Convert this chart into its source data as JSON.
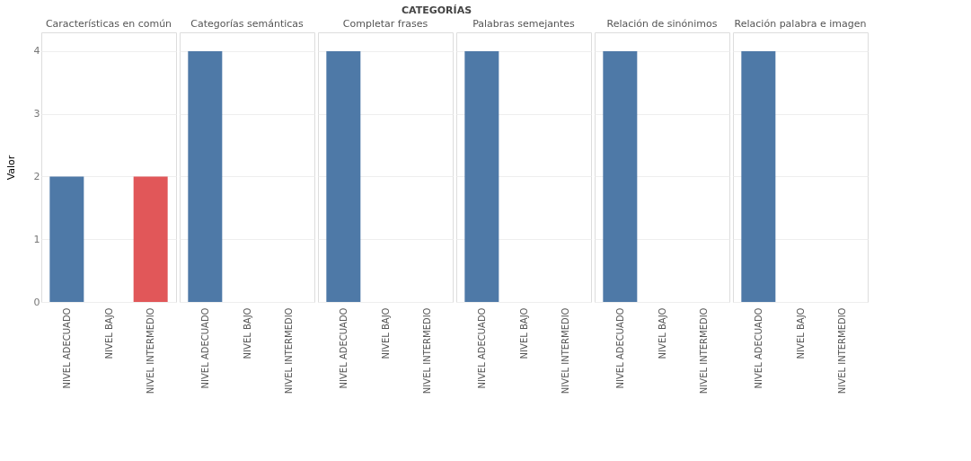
{
  "chart_data": [
    {
      "type": "bar",
      "title": "Características en común",
      "annotations": [
        "CATEGORÍAS"
      ],
      "ylabel": "Valor",
      "categories": [
        "NIVEL ADECUADO",
        "NIVEL BAJO",
        "NIVEL INTERMEDIO"
      ],
      "values": [
        2,
        null,
        2
      ],
      "colors": [
        "#4e79a7",
        "#4e79a7",
        "#e15759"
      ],
      "ylim": [
        0,
        4.3
      ],
      "yticks": [
        0,
        1,
        2,
        3,
        4
      ],
      "grid": "y"
    },
    {
      "type": "bar",
      "title": "Categorías semánticas",
      "categories": [
        "NIVEL ADECUADO",
        "NIVEL BAJO",
        "NIVEL INTERMEDIO"
      ],
      "values": [
        4,
        null,
        null
      ],
      "colors": [
        "#4e79a7",
        "#4e79a7",
        "#4e79a7"
      ],
      "ylim": [
        0,
        4.3
      ],
      "yticks": [
        0,
        1,
        2,
        3,
        4
      ],
      "grid": "y",
      "tick_labels": "x"
    },
    {
      "type": "bar",
      "title": "Completar frases",
      "categories": [
        "NIVEL ADECUADO",
        "NIVEL BAJO",
        "NIVEL INTERMEDIO"
      ],
      "values": [
        4,
        null,
        null
      ],
      "colors": [
        "#4e79a7",
        "#4e79a7",
        "#4e79a7"
      ],
      "ylim": [
        0,
        4.3
      ],
      "yticks": [
        0,
        1,
        2,
        3,
        4
      ],
      "grid": "y",
      "tick_labels": "x"
    },
    {
      "type": "bar",
      "title": "Palabras semejantes",
      "categories": [
        "NIVEL ADECUADO",
        "NIVEL BAJO",
        "NIVEL INTERMEDIO"
      ],
      "values": [
        4,
        null,
        null
      ],
      "colors": [
        "#4e79a7",
        "#4e79a7",
        "#4e79a7"
      ],
      "ylim": [
        0,
        4.3
      ],
      "yticks": [
        0,
        1,
        2,
        3,
        4
      ],
      "grid": "y",
      "tick_labels": "x"
    },
    {
      "type": "bar",
      "title": "Relación de sinónimos",
      "categories": [
        "NIVEL ADECUADO",
        "NIVEL BAJO",
        "NIVEL INTERMEDIO"
      ],
      "values": [
        4,
        null,
        null
      ],
      "colors": [
        "#4e79a7",
        "#4e79a7",
        "#4e79a7"
      ],
      "ylim": [
        0,
        4.3
      ],
      "yticks": [
        0,
        1,
        2,
        3,
        4
      ],
      "grid": "y",
      "tick_labels": "x"
    },
    {
      "type": "bar",
      "title": "Relación palabra e imagen",
      "categories": [
        "NIVEL ADECUADO",
        "NIVEL BAJO",
        "NIVEL INTERMEDIO"
      ],
      "values": [
        4,
        null,
        null
      ],
      "colors": [
        "#4e79a7",
        "#4e79a7",
        "#4e79a7"
      ],
      "ylim": [
        0,
        4.3
      ],
      "yticks": [
        0,
        1,
        2,
        3,
        4
      ],
      "grid": "y",
      "tick_labels": "x"
    }
  ]
}
